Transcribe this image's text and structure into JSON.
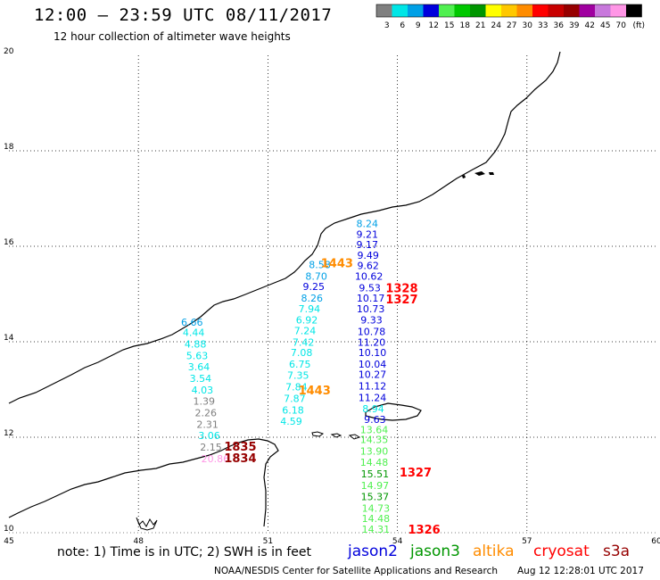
{
  "header": {
    "title": "12:00 – 23:59 UTC 08/11/2017",
    "subtitle": "12 hour collection of altimeter wave heights"
  },
  "legend": {
    "unit": "(ft)",
    "bins": [
      {
        "label": "3",
        "color": "#808080"
      },
      {
        "label": "6",
        "color": "#00e6e6"
      },
      {
        "label": "9",
        "color": "#00a0e6"
      },
      {
        "label": "12",
        "color": "#0000dc"
      },
      {
        "label": "15",
        "color": "#50f050"
      },
      {
        "label": "18",
        "color": "#00c800"
      },
      {
        "label": "21",
        "color": "#009600"
      },
      {
        "label": "24",
        "color": "#ffff00"
      },
      {
        "label": "27",
        "color": "#ffc800"
      },
      {
        "label": "30",
        "color": "#ff8c00"
      },
      {
        "label": "33",
        "color": "#ff0000"
      },
      {
        "label": "36",
        "color": "#c80000"
      },
      {
        "label": "39",
        "color": "#960000"
      },
      {
        "label": "42",
        "color": "#a000a0"
      },
      {
        "label": "45",
        "color": "#c878dc"
      },
      {
        "label": "70",
        "color": "#ff96e6"
      },
      {
        "label": "",
        "color": "#000000"
      }
    ]
  },
  "axes": {
    "x_ticks": [
      "45",
      "48",
      "51",
      "54",
      "57",
      "60"
    ],
    "y_ticks": [
      "20",
      "18",
      "16",
      "14",
      "12",
      "10"
    ],
    "lon_range": [
      45,
      60
    ],
    "lat_range": [
      10,
      20
    ]
  },
  "observations": [
    {
      "lon": 53.3,
      "lat": 16.4,
      "value": "8.24",
      "color": "#00a0e6"
    },
    {
      "lon": 53.3,
      "lat": 16.18,
      "value": "9.21",
      "color": "#0000dc"
    },
    {
      "lon": 53.3,
      "lat": 15.96,
      "value": "9.17",
      "color": "#0000dc"
    },
    {
      "lon": 53.32,
      "lat": 15.74,
      "value": "9.49",
      "color": "#0000dc"
    },
    {
      "lon": 53.32,
      "lat": 15.52,
      "value": "9.62",
      "color": "#0000dc"
    },
    {
      "lon": 53.34,
      "lat": 15.3,
      "value": "10.62",
      "color": "#0000dc"
    },
    {
      "lon": 53.36,
      "lat": 15.06,
      "value": "9.53",
      "color": "#0000dc"
    },
    {
      "lon": 53.38,
      "lat": 14.84,
      "value": "10.17",
      "color": "#0000dc"
    },
    {
      "lon": 53.38,
      "lat": 14.62,
      "value": "10.73",
      "color": "#0000dc"
    },
    {
      "lon": 53.4,
      "lat": 14.38,
      "value": "9.33",
      "color": "#0000dc"
    },
    {
      "lon": 53.4,
      "lat": 14.14,
      "value": "10.78",
      "color": "#0000dc"
    },
    {
      "lon": 53.4,
      "lat": 13.92,
      "value": "11.20",
      "color": "#0000dc"
    },
    {
      "lon": 53.42,
      "lat": 13.7,
      "value": "10.10",
      "color": "#0000dc"
    },
    {
      "lon": 53.42,
      "lat": 13.46,
      "value": "10.04",
      "color": "#0000dc"
    },
    {
      "lon": 53.42,
      "lat": 13.24,
      "value": "10.27",
      "color": "#0000dc"
    },
    {
      "lon": 53.42,
      "lat": 13.0,
      "value": "11.12",
      "color": "#0000dc"
    },
    {
      "lon": 53.42,
      "lat": 12.76,
      "value": "11.24",
      "color": "#0000dc"
    },
    {
      "lon": 53.44,
      "lat": 12.52,
      "value": "8.94",
      "color": "#00e6e6"
    },
    {
      "lon": 53.48,
      "lat": 12.3,
      "value": "9.63",
      "color": "#0000dc"
    },
    {
      "lon": 53.46,
      "lat": 12.08,
      "value": "13.64",
      "color": "#50f050"
    },
    {
      "lon": 53.46,
      "lat": 11.88,
      "value": "14.35",
      "color": "#50f050"
    },
    {
      "lon": 53.46,
      "lat": 11.64,
      "value": "13.90",
      "color": "#50f050"
    },
    {
      "lon": 53.46,
      "lat": 11.4,
      "value": "14.48",
      "color": "#50f050"
    },
    {
      "lon": 53.48,
      "lat": 11.16,
      "value": "15.51",
      "color": "#009600"
    },
    {
      "lon": 53.48,
      "lat": 10.92,
      "value": "14.97",
      "color": "#50f050"
    },
    {
      "lon": 53.48,
      "lat": 10.68,
      "value": "15.37",
      "color": "#009600"
    },
    {
      "lon": 53.5,
      "lat": 10.44,
      "value": "14.73",
      "color": "#50f050"
    },
    {
      "lon": 53.5,
      "lat": 10.22,
      "value": "14.48",
      "color": "#50f050"
    },
    {
      "lon": 53.5,
      "lat": 10.0,
      "value": "14.31",
      "color": "#50f050"
    },
    {
      "lon": 52.2,
      "lat": 15.54,
      "value": "8.58",
      "color": "#00a0e6"
    },
    {
      "lon": 52.12,
      "lat": 15.3,
      "value": "8.70",
      "color": "#00a0e6"
    },
    {
      "lon": 52.06,
      "lat": 15.08,
      "value": "9.25",
      "color": "#0000dc"
    },
    {
      "lon": 52.02,
      "lat": 14.84,
      "value": "8.26",
      "color": "#00a0e6"
    },
    {
      "lon": 51.96,
      "lat": 14.62,
      "value": "7.94",
      "color": "#00e6e6"
    },
    {
      "lon": 51.9,
      "lat": 14.38,
      "value": "6.92",
      "color": "#00e6e6"
    },
    {
      "lon": 51.86,
      "lat": 14.16,
      "value": "7.24",
      "color": "#00e6e6"
    },
    {
      "lon": 51.82,
      "lat": 13.92,
      "value": "7.42",
      "color": "#00e6e6"
    },
    {
      "lon": 51.78,
      "lat": 13.7,
      "value": "7.08",
      "color": "#00e6e6"
    },
    {
      "lon": 51.74,
      "lat": 13.46,
      "value": "6.75",
      "color": "#00e6e6"
    },
    {
      "lon": 51.7,
      "lat": 13.22,
      "value": "7.35",
      "color": "#00e6e6"
    },
    {
      "lon": 51.66,
      "lat": 12.98,
      "value": "7.84",
      "color": "#00e6e6"
    },
    {
      "lon": 51.62,
      "lat": 12.74,
      "value": "7.87",
      "color": "#00e6e6"
    },
    {
      "lon": 51.58,
      "lat": 12.5,
      "value": "6.18",
      "color": "#00e6e6"
    },
    {
      "lon": 51.54,
      "lat": 12.26,
      "value": "4.59",
      "color": "#00e6e6"
    },
    {
      "lon": 49.24,
      "lat": 14.34,
      "value": "6.66",
      "color": "#00a0e6"
    },
    {
      "lon": 49.28,
      "lat": 14.12,
      "value": "4.44",
      "color": "#00e6e6"
    },
    {
      "lon": 49.32,
      "lat": 13.88,
      "value": "4.88",
      "color": "#00e6e6"
    },
    {
      "lon": 49.36,
      "lat": 13.64,
      "value": "5.63",
      "color": "#00e6e6"
    },
    {
      "lon": 49.4,
      "lat": 13.4,
      "value": "3.64",
      "color": "#00e6e6"
    },
    {
      "lon": 49.44,
      "lat": 13.16,
      "value": "3.54",
      "color": "#00e6e6"
    },
    {
      "lon": 49.48,
      "lat": 12.92,
      "value": "4.03",
      "color": "#00e6e6"
    },
    {
      "lon": 49.52,
      "lat": 12.68,
      "value": "1.39",
      "color": "#808080"
    },
    {
      "lon": 49.56,
      "lat": 12.44,
      "value": "2.26",
      "color": "#808080"
    },
    {
      "lon": 49.6,
      "lat": 12.2,
      "value": "2.31",
      "color": "#808080"
    },
    {
      "lon": 49.64,
      "lat": 11.96,
      "value": "3.06",
      "color": "#00e6e6"
    },
    {
      "lon": 49.68,
      "lat": 11.72,
      "value": "2.15",
      "color": "#808080"
    },
    {
      "lon": 49.78,
      "lat": 11.48,
      "value": "20.86",
      "color": "#ff96e6"
    }
  ],
  "pass_times": [
    {
      "lon": 52.6,
      "lat": 15.56,
      "label": "1443",
      "color": "#ff8c00"
    },
    {
      "lon": 52.08,
      "lat": 12.9,
      "label": "1443",
      "color": "#ff8c00"
    },
    {
      "lon": 54.1,
      "lat": 15.04,
      "label": "1328",
      "color": "#ff0000"
    },
    {
      "lon": 54.1,
      "lat": 14.8,
      "label": "1327",
      "color": "#ff0000"
    },
    {
      "lon": 54.42,
      "lat": 11.18,
      "label": "1327",
      "color": "#ff0000"
    },
    {
      "lon": 54.62,
      "lat": 9.98,
      "label": "1326",
      "color": "#ff0000"
    },
    {
      "lon": 50.36,
      "lat": 11.72,
      "label": "1835",
      "color": "#960000"
    },
    {
      "lon": 50.36,
      "lat": 11.48,
      "label": "1834",
      "color": "#960000"
    }
  ],
  "footer": {
    "note": "note:  1) Time is in UTC;  2) SWH is in feet",
    "satellites": [
      {
        "name": "jason2",
        "color": "#0000dc"
      },
      {
        "name": "jason3",
        "color": "#009600"
      },
      {
        "name": "altika",
        "color": "#ff8c00"
      },
      {
        "name": "cryosat",
        "color": "#ff0000"
      },
      {
        "name": "s3a",
        "color": "#960000"
      }
    ],
    "credit": "NOAA/NESDIS Center for Satellite Applications and Research",
    "timestamp": "Aug 12 12:28:01 UTC 2017"
  }
}
